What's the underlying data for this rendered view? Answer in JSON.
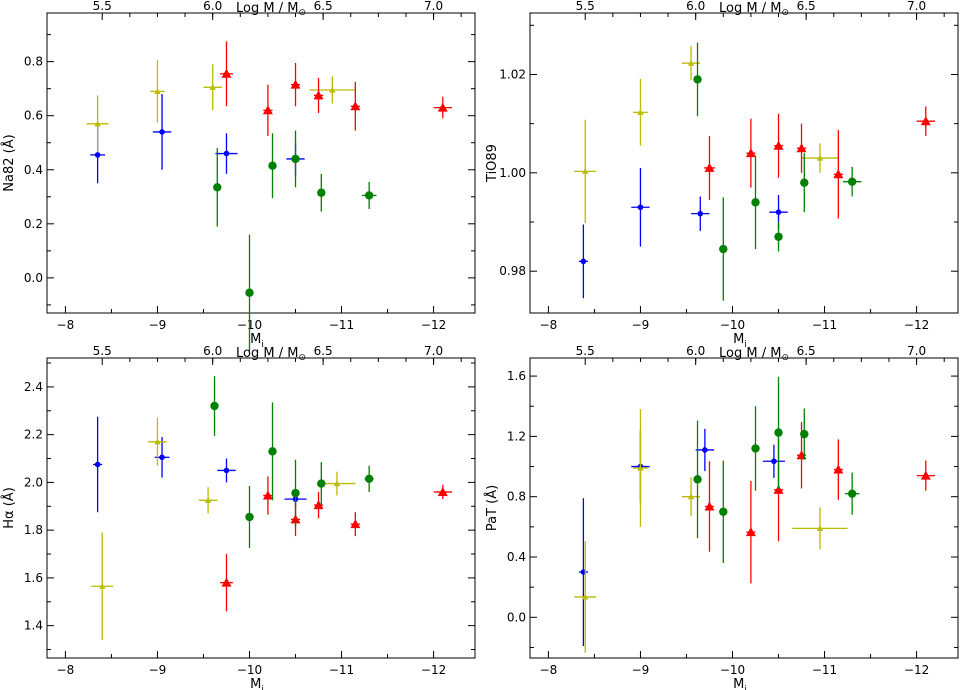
{
  "chart_data": [
    {
      "type": "scatter",
      "xlabel": "M",
      "xlabel_sub": "i",
      "ylabel": "Na82 (Å)",
      "top_axis_label": "Log M / M",
      "top_axis_sub": "⊙",
      "xlim": [
        -7.8,
        -12.45
      ],
      "ylim": [
        -0.13,
        0.98
      ],
      "xticks": [
        -8,
        -9,
        -10,
        -11,
        -12
      ],
      "yticks": [
        0.0,
        0.2,
        0.4,
        0.6,
        0.8
      ],
      "top_ticks": [
        {
          "x": -8.4,
          "label": "5.5"
        },
        {
          "x": -9.6,
          "label": "6.0"
        },
        {
          "x": -10.8,
          "label": "6.5"
        },
        {
          "x": -12.0,
          "label": "7.0"
        }
      ],
      "series": [
        {
          "color": "#0000ff",
          "marker": "circle-small",
          "points": [
            {
              "x": -8.35,
              "y": 0.455,
              "xerr": 0.08,
              "yerr": 0.105
            },
            {
              "x": -9.05,
              "y": 0.54,
              "xerr": 0.1,
              "yerr": 0.14
            },
            {
              "x": -9.75,
              "y": 0.46,
              "xerr": 0.12,
              "yerr": 0.075
            },
            {
              "x": -10.5,
              "y": 0.44,
              "xerr": 0.1,
              "yerr": 0.06
            }
          ]
        },
        {
          "color": "#bbbb00",
          "marker": "triangle-small",
          "points": [
            {
              "x": -8.35,
              "y": 0.57,
              "xerr": 0.12,
              "yerr": 0.105
            },
            {
              "x": -9.0,
              "y": 0.69,
              "xerr": 0.08,
              "yerr": 0.115
            },
            {
              "x": -9.6,
              "y": 0.705,
              "xerr": 0.1,
              "yerr": 0.085
            },
            {
              "x": -10.9,
              "y": 0.695,
              "xerr": 0.25,
              "yerr": 0.05
            }
          ]
        },
        {
          "color": "#ff0000",
          "marker": "triangle",
          "points": [
            {
              "x": -9.75,
              "y": 0.755,
              "xerr": 0.07,
              "yerr": 0.12
            },
            {
              "x": -10.2,
              "y": 0.62,
              "xerr": 0.05,
              "yerr": 0.095
            },
            {
              "x": -10.5,
              "y": 0.715,
              "xerr": 0.05,
              "yerr": 0.08
            },
            {
              "x": -10.75,
              "y": 0.675,
              "xerr": 0.05,
              "yerr": 0.065
            },
            {
              "x": -11.15,
              "y": 0.635,
              "xerr": 0.05,
              "yerr": 0.09
            },
            {
              "x": -12.1,
              "y": 0.63,
              "xerr": 0.1,
              "yerr": 0.04
            }
          ]
        },
        {
          "color": "#008000",
          "marker": "circle",
          "points": [
            {
              "x": -9.65,
              "y": 0.335,
              "xerr": 0.03,
              "yerr": 0.145
            },
            {
              "x": -10.0,
              "y": -0.055,
              "xerr": 0.02,
              "yerr": 0.215
            },
            {
              "x": -10.25,
              "y": 0.415,
              "xerr": 0.03,
              "yerr": 0.12
            },
            {
              "x": -10.5,
              "y": 0.44,
              "xerr": 0.03,
              "yerr": 0.105
            },
            {
              "x": -10.78,
              "y": 0.315,
              "xerr": 0.03,
              "yerr": 0.07
            },
            {
              "x": -11.3,
              "y": 0.305,
              "xerr": 0.08,
              "yerr": 0.05
            }
          ]
        }
      ]
    },
    {
      "type": "scatter",
      "xlabel": "M",
      "xlabel_sub": "i",
      "ylabel": "TiO89",
      "top_axis_label": "Log M / M",
      "top_axis_sub": "⊙",
      "xlim": [
        -7.8,
        -12.45
      ],
      "ylim": [
        0.9715,
        1.0325
      ],
      "xticks": [
        -8,
        -9,
        -10,
        -11,
        -12
      ],
      "yticks": [
        0.98,
        1.0,
        1.02
      ],
      "ytick_labels": [
        "0.98",
        "1.00",
        "1.02"
      ],
      "top_ticks": [
        {
          "x": -8.4,
          "label": "5.5"
        },
        {
          "x": -9.6,
          "label": "6.0"
        },
        {
          "x": -10.8,
          "label": "6.5"
        },
        {
          "x": -12.0,
          "label": "7.0"
        }
      ],
      "series": [
        {
          "color": "#0000ff",
          "marker": "circle-small",
          "points": [
            {
              "x": -8.38,
              "y": 0.982,
              "xerr": 0.05,
              "yerr": 0.0075
            },
            {
              "x": -9.0,
              "y": 0.993,
              "xerr": 0.1,
              "yerr": 0.008
            },
            {
              "x": -9.65,
              "y": 0.9917,
              "xerr": 0.1,
              "yerr": 0.0035
            },
            {
              "x": -10.5,
              "y": 0.992,
              "xerr": 0.1,
              "yerr": 0.0035
            }
          ]
        },
        {
          "color": "#bbbb00",
          "marker": "triangle-small",
          "points": [
            {
              "x": -8.4,
              "y": 1.0003,
              "xerr": 0.12,
              "yerr": 0.0105
            },
            {
              "x": -9.0,
              "y": 1.0123,
              "xerr": 0.08,
              "yerr": 0.0068
            },
            {
              "x": -9.55,
              "y": 1.0223,
              "xerr": 0.1,
              "yerr": 0.0035
            },
            {
              "x": -10.95,
              "y": 1.003,
              "xerr": 0.2,
              "yerr": 0.003
            }
          ]
        },
        {
          "color": "#ff0000",
          "marker": "triangle",
          "points": [
            {
              "x": -9.75,
              "y": 1.001,
              "xerr": 0.06,
              "yerr": 0.0065
            },
            {
              "x": -10.2,
              "y": 1.004,
              "xerr": 0.05,
              "yerr": 0.007
            },
            {
              "x": -10.5,
              "y": 1.0055,
              "xerr": 0.05,
              "yerr": 0.0065
            },
            {
              "x": -10.75,
              "y": 1.005,
              "xerr": 0.05,
              "yerr": 0.005
            },
            {
              "x": -11.15,
              "y": 0.9997,
              "xerr": 0.05,
              "yerr": 0.009
            },
            {
              "x": -12.1,
              "y": 1.0105,
              "xerr": 0.1,
              "yerr": 0.003
            }
          ]
        },
        {
          "color": "#008000",
          "marker": "circle",
          "points": [
            {
              "x": -9.62,
              "y": 1.019,
              "xerr": 0.03,
              "yerr": 0.0075
            },
            {
              "x": -9.9,
              "y": 0.9845,
              "xerr": 0.03,
              "yerr": 0.0105
            },
            {
              "x": -10.25,
              "y": 0.994,
              "xerr": 0.03,
              "yerr": 0.0095
            },
            {
              "x": -10.5,
              "y": 0.987,
              "xerr": 0.03,
              "yerr": 0.003
            },
            {
              "x": -10.78,
              "y": 0.998,
              "xerr": 0.03,
              "yerr": 0.006
            },
            {
              "x": -11.3,
              "y": 0.9982,
              "xerr": 0.1,
              "yerr": 0.003
            }
          ]
        }
      ]
    },
    {
      "type": "scatter",
      "xlabel": "M",
      "xlabel_sub": "i",
      "ylabel": "Hα (Å)",
      "top_axis_label": "Log M / M",
      "top_axis_sub": "⊙",
      "xlim": [
        -7.8,
        -12.45
      ],
      "ylim": [
        1.2645,
        2.521
      ],
      "xticks": [
        -8,
        -9,
        -10,
        -11,
        -12
      ],
      "yticks": [
        1.4,
        1.6,
        1.8,
        2.0,
        2.2,
        2.4
      ],
      "top_ticks": [
        {
          "x": -8.4,
          "label": "5.5"
        },
        {
          "x": -9.6,
          "label": "6.0"
        },
        {
          "x": -10.8,
          "label": "6.5"
        },
        {
          "x": -12.0,
          "label": "7.0"
        }
      ],
      "series": [
        {
          "color": "#0000ff",
          "marker": "circle-small",
          "points": [
            {
              "x": -8.35,
              "y": 2.075,
              "xerr": 0.05,
              "yerr": 0.2
            },
            {
              "x": -9.05,
              "y": 2.105,
              "xerr": 0.08,
              "yerr": 0.085
            },
            {
              "x": -9.75,
              "y": 2.05,
              "xerr": 0.1,
              "yerr": 0.05
            },
            {
              "x": -10.5,
              "y": 1.93,
              "xerr": 0.12,
              "yerr": 0.03
            }
          ]
        },
        {
          "color": "#bbbb00",
          "marker": "triangle-small",
          "points": [
            {
              "x": -8.4,
              "y": 1.565,
              "xerr": 0.12,
              "yerr": 0.225
            },
            {
              "x": -9.0,
              "y": 2.17,
              "xerr": 0.1,
              "yerr": 0.1
            },
            {
              "x": -9.55,
              "y": 1.925,
              "xerr": 0.1,
              "yerr": 0.055
            },
            {
              "x": -10.95,
              "y": 1.995,
              "xerr": 0.2,
              "yerr": 0.05
            }
          ]
        },
        {
          "color": "#ff0000",
          "marker": "triangle",
          "points": [
            {
              "x": -9.75,
              "y": 1.58,
              "xerr": 0.07,
              "yerr": 0.12
            },
            {
              "x": -10.2,
              "y": 1.945,
              "xerr": 0.05,
              "yerr": 0.08
            },
            {
              "x": -10.5,
              "y": 1.845,
              "xerr": 0.05,
              "yerr": 0.07
            },
            {
              "x": -10.75,
              "y": 1.905,
              "xerr": 0.05,
              "yerr": 0.055
            },
            {
              "x": -11.15,
              "y": 1.825,
              "xerr": 0.05,
              "yerr": 0.05
            },
            {
              "x": -12.1,
              "y": 1.96,
              "xerr": 0.1,
              "yerr": 0.03
            }
          ]
        },
        {
          "color": "#008000",
          "marker": "circle",
          "points": [
            {
              "x": -9.62,
              "y": 2.32,
              "xerr": 0.03,
              "yerr": 0.125
            },
            {
              "x": -10.0,
              "y": 1.855,
              "xerr": 0.02,
              "yerr": 0.13
            },
            {
              "x": -10.25,
              "y": 2.13,
              "xerr": 0.03,
              "yerr": 0.205
            },
            {
              "x": -10.5,
              "y": 1.955,
              "xerr": 0.03,
              "yerr": 0.14
            },
            {
              "x": -10.78,
              "y": 1.995,
              "xerr": 0.03,
              "yerr": 0.09
            },
            {
              "x": -11.3,
              "y": 2.015,
              "xerr": 0.05,
              "yerr": 0.055
            }
          ]
        }
      ]
    },
    {
      "type": "scatter",
      "xlabel": "M",
      "xlabel_sub": "i",
      "ylabel": "PaT (Å)",
      "top_axis_label": "Log M / M",
      "top_axis_sub": "⊙",
      "xlim": [
        -7.8,
        -12.45
      ],
      "ylim": [
        -0.27,
        1.72
      ],
      "xticks": [
        -8,
        -9,
        -10,
        -11,
        -12
      ],
      "yticks": [
        0.0,
        0.4,
        0.8,
        1.2,
        1.6
      ],
      "top_ticks": [
        {
          "x": -8.4,
          "label": "5.5"
        },
        {
          "x": -9.6,
          "label": "6.0"
        },
        {
          "x": -10.8,
          "label": "6.5"
        },
        {
          "x": -12.0,
          "label": "7.0"
        }
      ],
      "series": [
        {
          "color": "#0000ff",
          "marker": "circle-small",
          "points": [
            {
              "x": -8.38,
              "y": 0.3,
              "xerr": 0.05,
              "yerr": 0.49
            },
            {
              "x": -9.0,
              "y": 1.0,
              "xerr": 0.1,
              "yerr": 0.24
            },
            {
              "x": -9.7,
              "y": 1.11,
              "xerr": 0.1,
              "yerr": 0.14
            },
            {
              "x": -10.45,
              "y": 1.035,
              "xerr": 0.12,
              "yerr": 0.11
            }
          ]
        },
        {
          "color": "#bbbb00",
          "marker": "triangle-small",
          "points": [
            {
              "x": -8.4,
              "y": 0.135,
              "xerr": 0.12,
              "yerr": 0.37
            },
            {
              "x": -9.0,
              "y": 0.99,
              "xerr": 0.08,
              "yerr": 0.39
            },
            {
              "x": -9.55,
              "y": 0.8,
              "xerr": 0.1,
              "yerr": 0.13
            },
            {
              "x": -10.95,
              "y": 0.59,
              "xerr": 0.3,
              "yerr": 0.14
            }
          ]
        },
        {
          "color": "#ff0000",
          "marker": "triangle",
          "points": [
            {
              "x": -9.75,
              "y": 0.735,
              "xerr": 0.05,
              "yerr": 0.3
            },
            {
              "x": -10.2,
              "y": 0.565,
              "xerr": 0.05,
              "yerr": 0.34
            },
            {
              "x": -10.5,
              "y": 0.845,
              "xerr": 0.05,
              "yerr": 0.34
            },
            {
              "x": -10.75,
              "y": 1.075,
              "xerr": 0.05,
              "yerr": 0.22
            },
            {
              "x": -11.15,
              "y": 0.98,
              "xerr": 0.05,
              "yerr": 0.2
            },
            {
              "x": -12.1,
              "y": 0.94,
              "xerr": 0.1,
              "yerr": 0.1
            }
          ]
        },
        {
          "color": "#008000",
          "marker": "circle",
          "points": [
            {
              "x": -9.62,
              "y": 0.915,
              "xerr": 0.03,
              "yerr": 0.39
            },
            {
              "x": -9.9,
              "y": 0.7,
              "xerr": 0.03,
              "yerr": 0.34
            },
            {
              "x": -10.25,
              "y": 1.12,
              "xerr": 0.03,
              "yerr": 0.28
            },
            {
              "x": -10.5,
              "y": 1.225,
              "xerr": 0.03,
              "yerr": 0.37
            },
            {
              "x": -10.78,
              "y": 1.215,
              "xerr": 0.03,
              "yerr": 0.17
            },
            {
              "x": -11.3,
              "y": 0.82,
              "xerr": 0.08,
              "yerr": 0.14
            }
          ]
        }
      ]
    }
  ]
}
